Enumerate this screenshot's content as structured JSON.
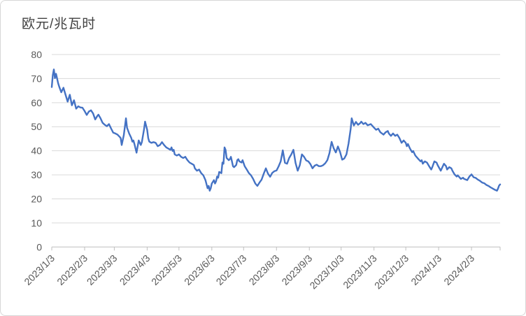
{
  "title": "欧元/兆瓦时",
  "colors": {
    "line": "#4472C4",
    "gridline": "#D9D9D9",
    "axis_line": "#BFBFBF",
    "tick_text": "#595959",
    "title_text": "#404040",
    "frame_border": "#D7D7D7",
    "background": "#FFFFFF"
  },
  "chart_data": {
    "type": "line",
    "title": "欧元/兆瓦时",
    "xlabel": "",
    "ylabel": "欧元/兆瓦时",
    "ylim": [
      0,
      80
    ],
    "yticks": [
      0,
      10,
      20,
      30,
      40,
      50,
      60,
      70,
      80
    ],
    "xticks": [
      "2023/1/3",
      "2023/2/3",
      "2023/3/3",
      "2023/4/3",
      "2023/5/3",
      "2023/6/3",
      "2023/7/3",
      "2023/8/3",
      "2023/9/3",
      "2023/10/3",
      "2023/11/3",
      "2023/12/3",
      "2024/1/3",
      "2024/2/3"
    ],
    "grid": true,
    "legend": false,
    "series": [
      {
        "points": [
          [
            "2023/1/3",
            66.5
          ],
          [
            "2023/1/4",
            71.5
          ],
          [
            "2023/1/5",
            73.8
          ],
          [
            "2023/1/6",
            70.2
          ],
          [
            "2023/1/7",
            72.0
          ],
          [
            "2023/1/9",
            68.1
          ],
          [
            "2023/1/10",
            66.7
          ],
          [
            "2023/1/12",
            64.3
          ],
          [
            "2023/1/14",
            66.2
          ],
          [
            "2023/1/16",
            63.3
          ],
          [
            "2023/1/18",
            60.4
          ],
          [
            "2023/1/20",
            63.3
          ],
          [
            "2023/1/22",
            58.9
          ],
          [
            "2023/1/24",
            61.0
          ],
          [
            "2023/1/26",
            57.5
          ],
          [
            "2023/1/28",
            58.5
          ],
          [
            "2023/1/30",
            58.0
          ],
          [
            "2023/2/1",
            57.9
          ],
          [
            "2023/2/3",
            56.5
          ],
          [
            "2023/2/5",
            54.9
          ],
          [
            "2023/2/7",
            56.3
          ],
          [
            "2023/2/9",
            56.8
          ],
          [
            "2023/2/11",
            55.5
          ],
          [
            "2023/2/13",
            53.0
          ],
          [
            "2023/2/15",
            54.5
          ],
          [
            "2023/2/16",
            55.0
          ],
          [
            "2023/2/18",
            53.5
          ],
          [
            "2023/2/20",
            51.6
          ],
          [
            "2023/2/22",
            50.8
          ],
          [
            "2023/2/24",
            50.2
          ],
          [
            "2023/2/26",
            51.1
          ],
          [
            "2023/2/28",
            49.2
          ],
          [
            "2023/3/2",
            47.5
          ],
          [
            "2023/3/4",
            47.2
          ],
          [
            "2023/3/6",
            46.7
          ],
          [
            "2023/3/8",
            45.8
          ],
          [
            "2023/3/9",
            45.3
          ],
          [
            "2023/3/10",
            42.4
          ],
          [
            "2023/3/12",
            46.5
          ],
          [
            "2023/3/14",
            53.5
          ],
          [
            "2023/3/15",
            49.6
          ],
          [
            "2023/3/17",
            47.2
          ],
          [
            "2023/3/19",
            45.3
          ],
          [
            "2023/3/20",
            43.8
          ],
          [
            "2023/3/21",
            44.3
          ],
          [
            "2023/3/22",
            42.8
          ],
          [
            "2023/3/24",
            39.2
          ],
          [
            "2023/3/26",
            44.3
          ],
          [
            "2023/3/28",
            42.4
          ],
          [
            "2023/3/29",
            43.6
          ],
          [
            "2023/3/31",
            48.7
          ],
          [
            "2023/4/1",
            52.1
          ],
          [
            "2023/4/3",
            48.7
          ],
          [
            "2023/4/4",
            45.3
          ],
          [
            "2023/4/5",
            43.8
          ],
          [
            "2023/4/7",
            43.3
          ],
          [
            "2023/4/9",
            43.6
          ],
          [
            "2023/4/11",
            43.3
          ],
          [
            "2023/4/13",
            41.9
          ],
          [
            "2023/4/15",
            42.4
          ],
          [
            "2023/4/17",
            43.6
          ],
          [
            "2023/4/19",
            42.4
          ],
          [
            "2023/4/21",
            41.4
          ],
          [
            "2023/4/23",
            40.9
          ],
          [
            "2023/4/25",
            40.4
          ],
          [
            "2023/4/26",
            41.4
          ],
          [
            "2023/4/27",
            39.9
          ],
          [
            "2023/4/28",
            40.4
          ],
          [
            "2023/4/29",
            38.5
          ],
          [
            "2023/5/1",
            38.0
          ],
          [
            "2023/5/3",
            38.5
          ],
          [
            "2023/5/5",
            37.5
          ],
          [
            "2023/5/7",
            37.0
          ],
          [
            "2023/5/9",
            37.5
          ],
          [
            "2023/5/11",
            36.1
          ],
          [
            "2023/5/13",
            35.1
          ],
          [
            "2023/5/15",
            34.6
          ],
          [
            "2023/5/17",
            34.1
          ],
          [
            "2023/5/18",
            32.7
          ],
          [
            "2023/5/20",
            31.7
          ],
          [
            "2023/5/22",
            32.2
          ],
          [
            "2023/5/24",
            30.7
          ],
          [
            "2023/5/26",
            29.8
          ],
          [
            "2023/5/28",
            27.8
          ],
          [
            "2023/5/30",
            24.4
          ],
          [
            "2023/5/31",
            25.4
          ],
          [
            "2023/6/1",
            23.4
          ],
          [
            "2023/6/2",
            24.4
          ],
          [
            "2023/6/3",
            26.4
          ],
          [
            "2023/6/5",
            27.8
          ],
          [
            "2023/6/6",
            26.4
          ],
          [
            "2023/6/7",
            27.3
          ],
          [
            "2023/6/8",
            29.3
          ],
          [
            "2023/6/9",
            28.8
          ],
          [
            "2023/6/10",
            31.2
          ],
          [
            "2023/6/12",
            30.7
          ],
          [
            "2023/6/13",
            35.1
          ],
          [
            "2023/6/14",
            34.6
          ],
          [
            "2023/6/15",
            41.4
          ],
          [
            "2023/6/16",
            40.4
          ],
          [
            "2023/6/17",
            37.0
          ],
          [
            "2023/6/19",
            36.1
          ],
          [
            "2023/6/20",
            36.5
          ],
          [
            "2023/6/21",
            37.5
          ],
          [
            "2023/6/22",
            35.6
          ],
          [
            "2023/6/23",
            33.6
          ],
          [
            "2023/6/24",
            33.2
          ],
          [
            "2023/6/26",
            34.1
          ],
          [
            "2023/6/27",
            36.1
          ],
          [
            "2023/6/28",
            36.5
          ],
          [
            "2023/6/29",
            35.6
          ],
          [
            "2023/7/1",
            35.1
          ],
          [
            "2023/7/2",
            36.1
          ],
          [
            "2023/7/4",
            33.6
          ],
          [
            "2023/7/6",
            32.2
          ],
          [
            "2023/7/8",
            30.7
          ],
          [
            "2023/7/10",
            29.8
          ],
          [
            "2023/7/12",
            28.3
          ],
          [
            "2023/7/14",
            26.4
          ],
          [
            "2023/7/16",
            25.4
          ],
          [
            "2023/7/18",
            26.8
          ],
          [
            "2023/7/20",
            28.0
          ],
          [
            "2023/7/22",
            30.5
          ],
          [
            "2023/7/24",
            32.7
          ],
          [
            "2023/7/26",
            30.5
          ],
          [
            "2023/7/28",
            29.2
          ],
          [
            "2023/7/30",
            30.8
          ],
          [
            "2023/8/1",
            31.5
          ],
          [
            "2023/8/3",
            31.8
          ],
          [
            "2023/8/5",
            33.5
          ],
          [
            "2023/8/7",
            35.6
          ],
          [
            "2023/8/9",
            40.2
          ],
          [
            "2023/8/11",
            35.0
          ],
          [
            "2023/8/13",
            34.6
          ],
          [
            "2023/8/15",
            37.0
          ],
          [
            "2023/8/17",
            38.5
          ],
          [
            "2023/8/19",
            40.4
          ],
          [
            "2023/8/21",
            35.0
          ],
          [
            "2023/8/23",
            31.7
          ],
          [
            "2023/8/25",
            34.0
          ],
          [
            "2023/8/27",
            38.5
          ],
          [
            "2023/8/29",
            37.5
          ],
          [
            "2023/8/31",
            36.0
          ],
          [
            "2023/9/2",
            35.6
          ],
          [
            "2023/9/4",
            34.5
          ],
          [
            "2023/9/6",
            32.7
          ],
          [
            "2023/9/8",
            33.8
          ],
          [
            "2023/9/10",
            34.2
          ],
          [
            "2023/9/12",
            33.6
          ],
          [
            "2023/9/14",
            33.6
          ],
          [
            "2023/9/16",
            34.0
          ],
          [
            "2023/9/18",
            34.8
          ],
          [
            "2023/9/20",
            36.1
          ],
          [
            "2023/9/22",
            39.0
          ],
          [
            "2023/9/24",
            43.7
          ],
          [
            "2023/9/26",
            41.0
          ],
          [
            "2023/9/28",
            39.3
          ],
          [
            "2023/9/30",
            41.8
          ],
          [
            "2023/10/2",
            39.5
          ],
          [
            "2023/10/4",
            36.3
          ],
          [
            "2023/10/6",
            36.8
          ],
          [
            "2023/10/8",
            38.5
          ],
          [
            "2023/10/10",
            43.0
          ],
          [
            "2023/10/12",
            49.0
          ],
          [
            "2023/10/13",
            53.5
          ],
          [
            "2023/10/15",
            50.5
          ],
          [
            "2023/10/17",
            52.0
          ],
          [
            "2023/10/19",
            50.8
          ],
          [
            "2023/10/21",
            51.5
          ],
          [
            "2023/10/22",
            52.1
          ],
          [
            "2023/10/24",
            51.1
          ],
          [
            "2023/10/26",
            51.6
          ],
          [
            "2023/10/28",
            50.6
          ],
          [
            "2023/10/31",
            51.1
          ],
          [
            "2023/11/3",
            49.6
          ],
          [
            "2023/11/5",
            48.7
          ],
          [
            "2023/11/7",
            49.2
          ],
          [
            "2023/11/9",
            47.7
          ],
          [
            "2023/11/12",
            46.7
          ],
          [
            "2023/11/14",
            47.7
          ],
          [
            "2023/11/16",
            48.2
          ],
          [
            "2023/11/17",
            47.2
          ],
          [
            "2023/11/19",
            46.2
          ],
          [
            "2023/11/21",
            47.2
          ],
          [
            "2023/11/23",
            46.2
          ],
          [
            "2023/11/25",
            46.7
          ],
          [
            "2023/11/27",
            45.3
          ],
          [
            "2023/11/29",
            43.3
          ],
          [
            "2023/12/1",
            44.3
          ],
          [
            "2023/12/3",
            43.3
          ],
          [
            "2023/12/4",
            41.9
          ],
          [
            "2023/12/5",
            42.8
          ],
          [
            "2023/12/7",
            40.9
          ],
          [
            "2023/12/9",
            39.4
          ],
          [
            "2023/12/10",
            39.9
          ],
          [
            "2023/12/12",
            38.0
          ],
          [
            "2023/12/15",
            36.5
          ],
          [
            "2023/12/17",
            35.6
          ],
          [
            "2023/12/18",
            36.1
          ],
          [
            "2023/12/19",
            34.6
          ],
          [
            "2023/12/21",
            35.6
          ],
          [
            "2023/12/23",
            35.1
          ],
          [
            "2023/12/25",
            33.6
          ],
          [
            "2023/12/27",
            32.2
          ],
          [
            "2023/12/28",
            33.2
          ],
          [
            "2023/12/30",
            35.6
          ],
          [
            "2024/1/1",
            35.1
          ],
          [
            "2024/1/2",
            34.1
          ],
          [
            "2024/1/5",
            31.7
          ],
          [
            "2024/1/6",
            32.7
          ],
          [
            "2024/1/8",
            34.6
          ],
          [
            "2024/1/10",
            33.6
          ],
          [
            "2024/1/11",
            32.2
          ],
          [
            "2024/1/13",
            33.2
          ],
          [
            "2024/1/15",
            32.7
          ],
          [
            "2024/1/16",
            31.7
          ],
          [
            "2024/1/18",
            30.2
          ],
          [
            "2024/1/20",
            29.3
          ],
          [
            "2024/1/21",
            29.8
          ],
          [
            "2024/1/23",
            28.8
          ],
          [
            "2024/1/24",
            28.3
          ],
          [
            "2024/1/26",
            28.8
          ],
          [
            "2024/1/27",
            28.3
          ],
          [
            "2024/1/30",
            27.8
          ],
          [
            "2024/2/1",
            29.3
          ],
          [
            "2024/2/3",
            30.2
          ],
          [
            "2024/2/5",
            29.0
          ],
          [
            "2024/2/7",
            28.7
          ],
          [
            "2024/2/9",
            28.0
          ],
          [
            "2024/2/11",
            27.5
          ],
          [
            "2024/2/13",
            26.8
          ],
          [
            "2024/2/15",
            26.5
          ],
          [
            "2024/2/17",
            25.8
          ],
          [
            "2024/2/19",
            25.4
          ],
          [
            "2024/2/21",
            24.8
          ],
          [
            "2024/2/23",
            24.3
          ],
          [
            "2024/2/25",
            23.8
          ],
          [
            "2024/2/27",
            23.4
          ],
          [
            "2024/2/28",
            24.3
          ],
          [
            "2024/2/29",
            25.5
          ],
          [
            "2024/3/1",
            26.0
          ]
        ]
      }
    ]
  }
}
